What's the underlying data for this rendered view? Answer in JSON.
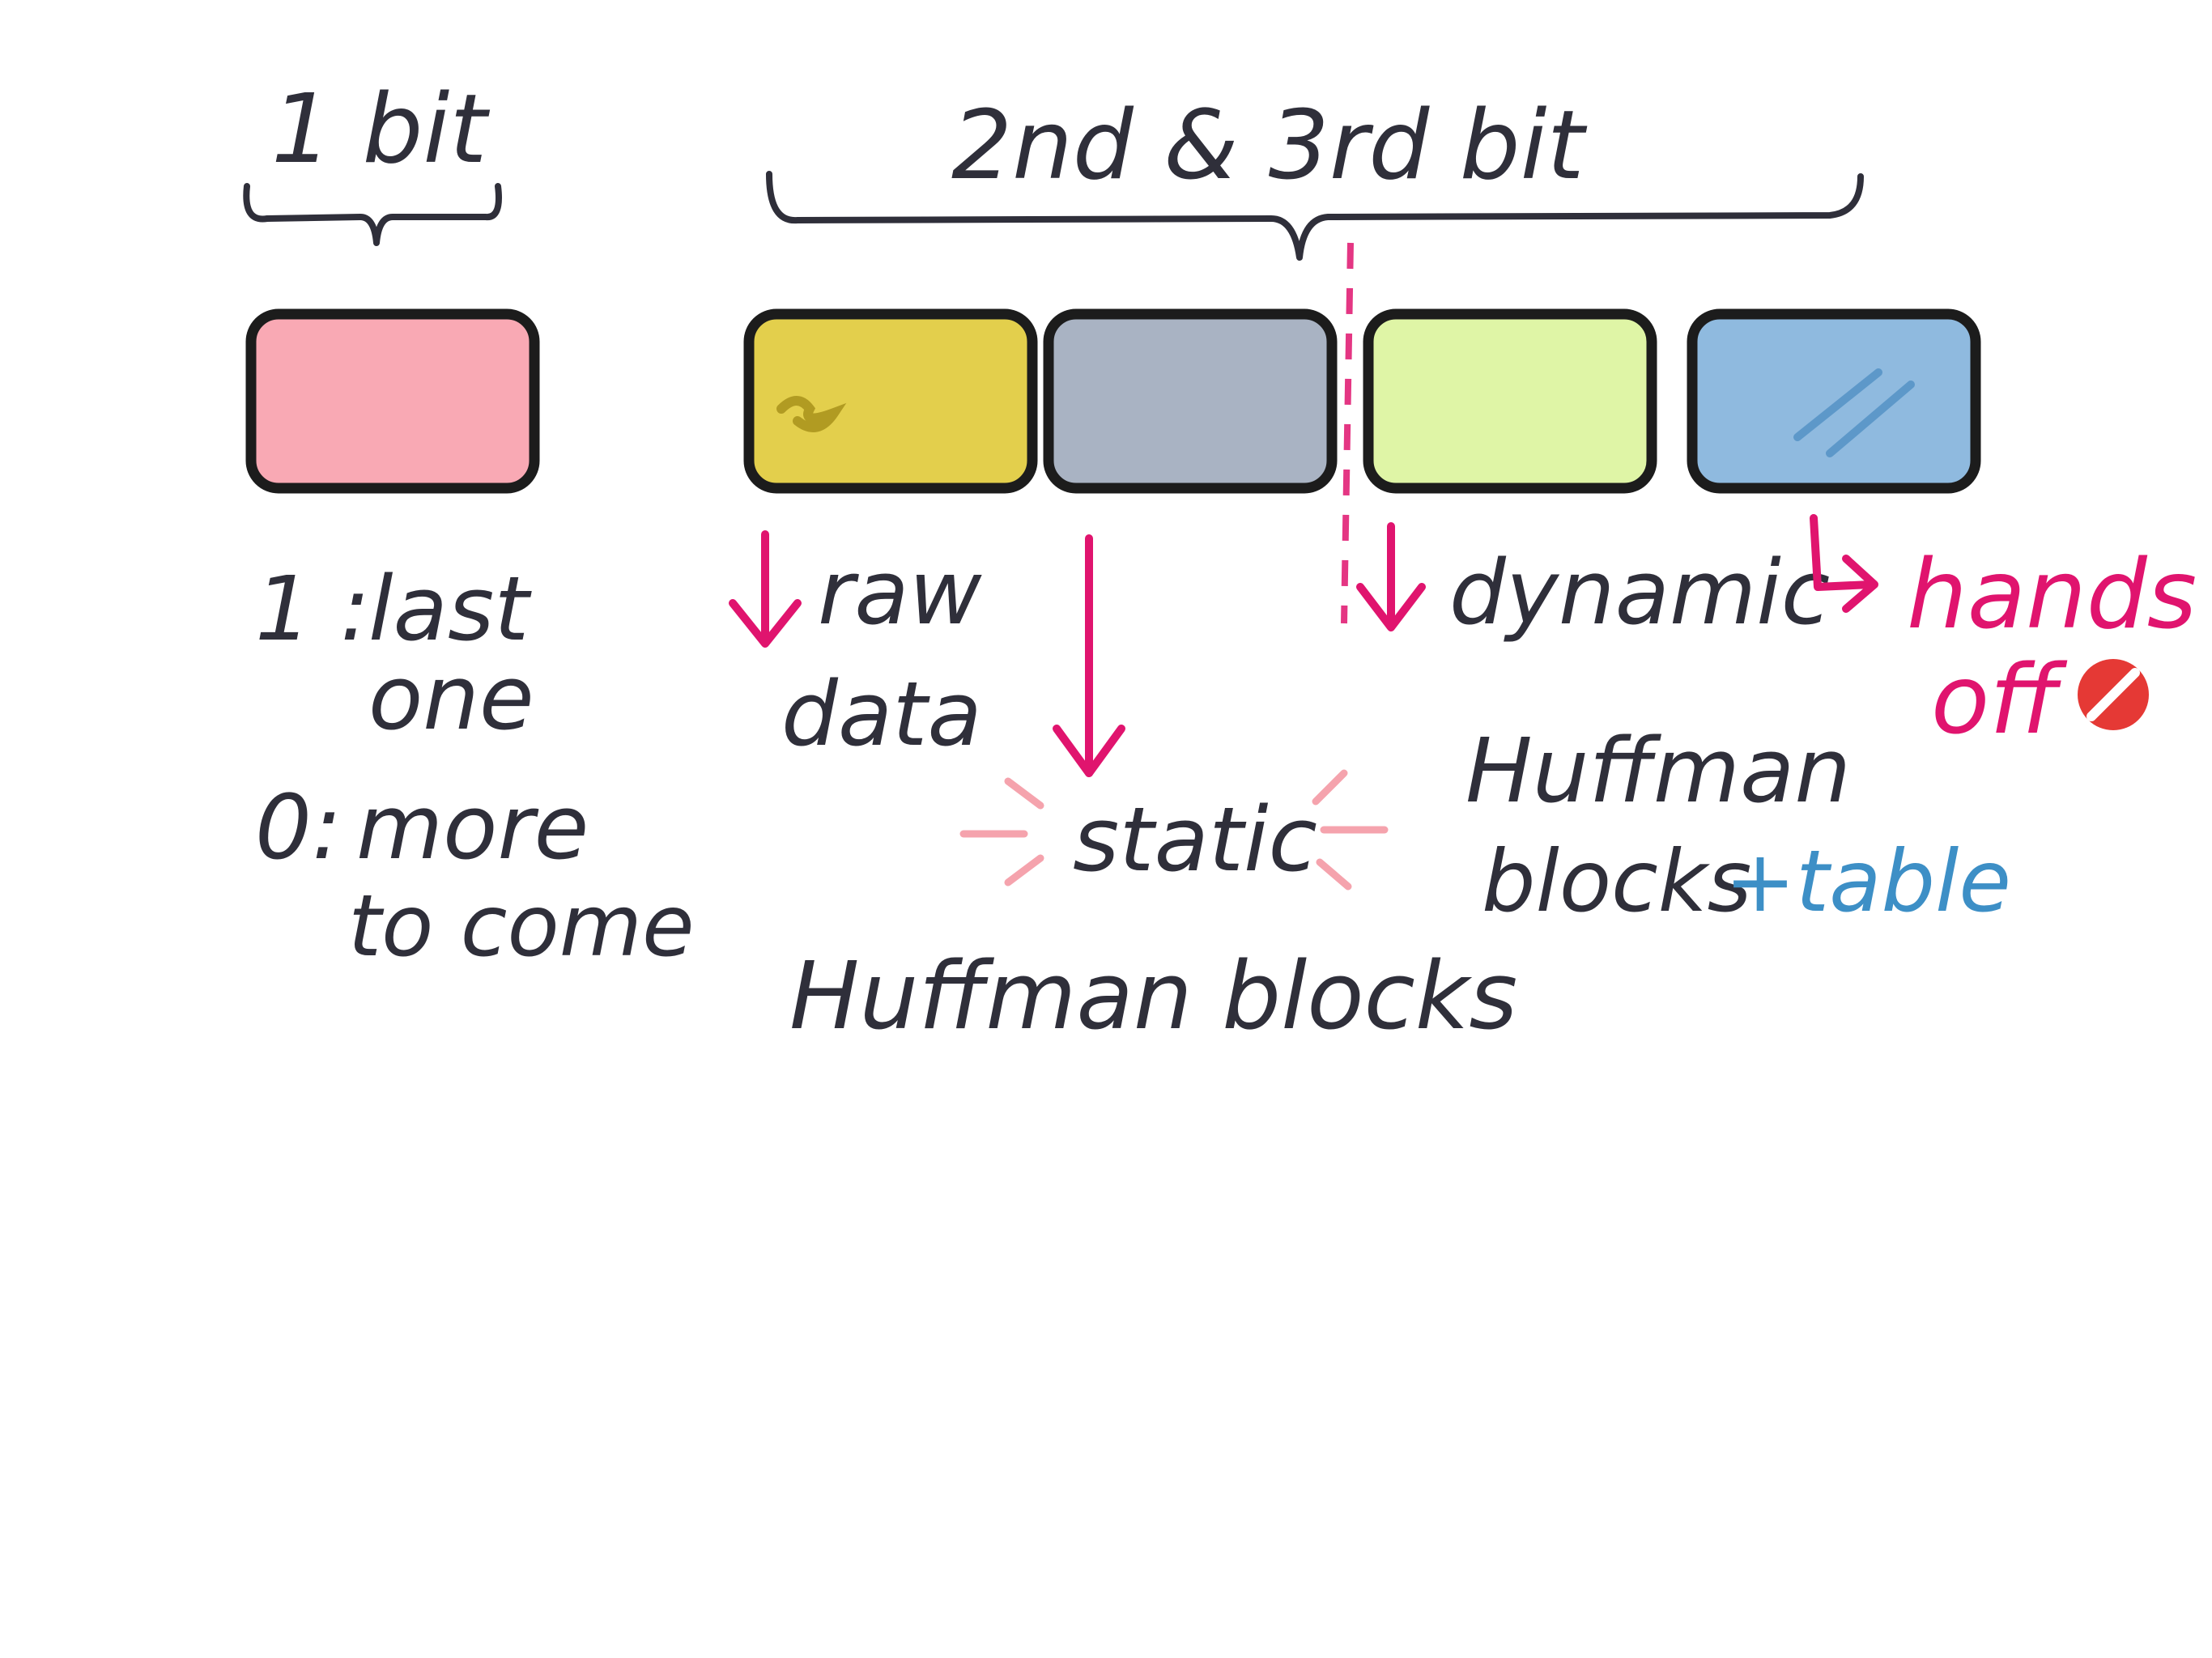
{
  "labels": {
    "first_bit": "1 bit",
    "bits_2_3": "2nd & 3rd bit",
    "last_one_key": "1 :",
    "last_one": "last",
    "last_one_2": "one",
    "more_key": "0:",
    "more": "more",
    "more_2": "to come",
    "raw_1": "raw",
    "raw_2": "data",
    "static": "static",
    "static_huffman": "Huffman blocks",
    "dynamic": "dynamic",
    "dynamic_huffman": "Huffman",
    "dynamic_blocks": "blocks",
    "dynamic_table": "+table",
    "hands_off_1": "hands",
    "hands_off_2": "off"
  },
  "blocks": [
    {
      "name": "bit1-block",
      "color": "#f9a9b4"
    },
    {
      "name": "raw-data-block",
      "color": "#e3cf4c"
    },
    {
      "name": "static-huffman-block",
      "color": "#a9b3c3"
    },
    {
      "name": "dynamic-huffman-block",
      "color": "#dff5a6"
    },
    {
      "name": "reserved-block",
      "color": "#8fbadf"
    }
  ],
  "colors": {
    "ink": "#2f2f3a",
    "arrow": "#e0146e",
    "accent_blue": "#3d8fc6",
    "no_sign": "#e53935"
  },
  "icons": {
    "no_sign": "no-entry-icon"
  }
}
